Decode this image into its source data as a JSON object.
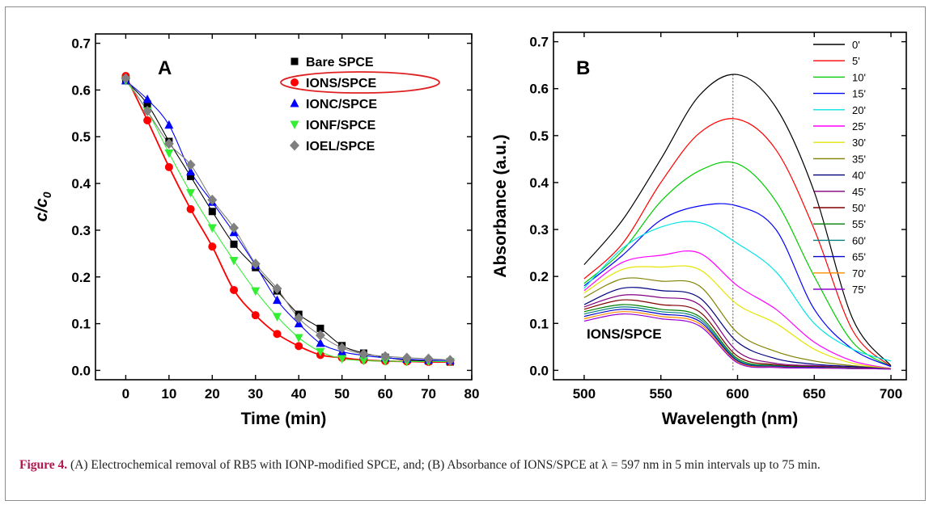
{
  "caption": {
    "label": "Figure 4.",
    "text": "(A) Electrochemical removal of RB5 with IONP-modified SPCE, and; (B) Absorbance of IONS/SPCE at λ = 597 nm in 5 min intervals up to 75 min."
  },
  "chart_data": [
    {
      "type": "scatter",
      "panel_label": "A",
      "xlabel": "Time (min)",
      "ylabel": "c/c",
      "ylabel_sub": "0",
      "xlim": [
        -7,
        80
      ],
      "ylim": [
        -0.02,
        0.72
      ],
      "xticks": [
        0,
        10,
        20,
        30,
        40,
        50,
        60,
        70,
        80
      ],
      "yticks": [
        0.0,
        0.1,
        0.2,
        0.3,
        0.4,
        0.5,
        0.6,
        0.7
      ],
      "grid": false,
      "legend_position": "top-right",
      "highlighted_series": "IONS/SPCE",
      "x": [
        0,
        5,
        10,
        15,
        20,
        25,
        30,
        35,
        40,
        45,
        50,
        55,
        60,
        65,
        70,
        75
      ],
      "series": [
        {
          "name": "Bare SPCE",
          "marker": "square",
          "color": "#000000",
          "values": [
            0.62,
            0.57,
            0.49,
            0.415,
            0.34,
            0.27,
            0.22,
            0.17,
            0.12,
            0.09,
            0.053,
            0.037,
            0.028,
            0.022,
            0.02,
            0.018
          ]
        },
        {
          "name": "IONS/SPCE",
          "marker": "circle",
          "color": "#ff0000",
          "values": [
            0.63,
            0.535,
            0.435,
            0.345,
            0.265,
            0.172,
            0.118,
            0.078,
            0.052,
            0.033,
            0.027,
            0.022,
            0.02,
            0.019,
            0.018,
            0.018
          ]
        },
        {
          "name": "IONC/SPCE",
          "marker": "triangle-up",
          "color": "#0000ff",
          "values": [
            0.62,
            0.58,
            0.525,
            0.425,
            0.36,
            0.295,
            0.225,
            0.15,
            0.1,
            0.058,
            0.04,
            0.032,
            0.027,
            0.024,
            0.022,
            0.021
          ]
        },
        {
          "name": "IONF/SPCE",
          "marker": "triangle-down",
          "color": "#33ee33",
          "values": [
            0.62,
            0.555,
            0.465,
            0.38,
            0.305,
            0.235,
            0.17,
            0.115,
            0.07,
            0.04,
            0.025,
            0.021,
            0.02,
            0.019,
            0.019,
            0.019
          ]
        },
        {
          "name": "IOEL/SPCE",
          "marker": "diamond",
          "color": "#808080",
          "values": [
            0.625,
            0.555,
            0.485,
            0.44,
            0.365,
            0.305,
            0.228,
            0.175,
            0.112,
            0.075,
            0.048,
            0.035,
            0.03,
            0.027,
            0.025,
            0.022
          ]
        }
      ]
    },
    {
      "type": "line",
      "panel_label": "B",
      "xlabel": "Wavelength (nm)",
      "ylabel": "Absorbance (a.u.)",
      "xlim": [
        480,
        710
      ],
      "ylim": [
        -0.02,
        0.72
      ],
      "xticks": [
        500,
        550,
        600,
        650,
        700
      ],
      "yticks": [
        0.0,
        0.1,
        0.2,
        0.3,
        0.4,
        0.5,
        0.6,
        0.7
      ],
      "grid": false,
      "legend_position": "top-right",
      "reference_line_x": 597,
      "annotation": "IONS/SPCE",
      "x": [
        500,
        525,
        550,
        575,
        600,
        625,
        650,
        675,
        700
      ],
      "series": [
        {
          "name": "0'",
          "color": "#000000",
          "values": [
            0.225,
            0.32,
            0.45,
            0.585,
            0.63,
            0.56,
            0.38,
            0.11,
            0.01
          ]
        },
        {
          "name": "5'",
          "color": "#ff0000",
          "values": [
            0.195,
            0.27,
            0.4,
            0.505,
            0.535,
            0.47,
            0.3,
            0.085,
            0.008
          ]
        },
        {
          "name": "10'",
          "color": "#00cc00",
          "values": [
            0.185,
            0.255,
            0.36,
            0.425,
            0.44,
            0.36,
            0.2,
            0.06,
            0.008
          ]
        },
        {
          "name": "15'",
          "color": "#0000ff",
          "values": [
            0.18,
            0.245,
            0.32,
            0.35,
            0.35,
            0.3,
            0.13,
            0.045,
            0.008
          ]
        },
        {
          "name": "20'",
          "color": "#00e5e5",
          "values": [
            0.175,
            0.26,
            0.305,
            0.315,
            0.27,
            0.21,
            0.1,
            0.045,
            0.02
          ]
        },
        {
          "name": "25'",
          "color": "#ff00ff",
          "values": [
            0.17,
            0.23,
            0.245,
            0.25,
            0.18,
            0.13,
            0.06,
            0.02,
            0.004
          ]
        },
        {
          "name": "30'",
          "color": "#e5e500",
          "values": [
            0.165,
            0.215,
            0.22,
            0.215,
            0.14,
            0.1,
            0.045,
            0.015,
            0.004
          ]
        },
        {
          "name": "35'",
          "color": "#808000",
          "values": [
            0.155,
            0.195,
            0.19,
            0.18,
            0.08,
            0.04,
            0.02,
            0.01,
            0.003
          ]
        },
        {
          "name": "40'",
          "color": "#000080",
          "values": [
            0.14,
            0.175,
            0.17,
            0.155,
            0.06,
            0.025,
            0.013,
            0.008,
            0.003
          ]
        },
        {
          "name": "45'",
          "color": "#800080",
          "values": [
            0.135,
            0.16,
            0.155,
            0.14,
            0.04,
            0.015,
            0.01,
            0.006,
            0.003
          ]
        },
        {
          "name": "50'",
          "color": "#800000",
          "values": [
            0.13,
            0.15,
            0.14,
            0.125,
            0.03,
            0.012,
            0.008,
            0.005,
            0.003
          ]
        },
        {
          "name": "55'",
          "color": "#008000",
          "values": [
            0.125,
            0.14,
            0.13,
            0.115,
            0.025,
            0.01,
            0.007,
            0.005,
            0.003
          ]
        },
        {
          "name": "60'",
          "color": "#008080",
          "values": [
            0.12,
            0.135,
            0.125,
            0.11,
            0.022,
            0.009,
            0.006,
            0.004,
            0.003
          ]
        },
        {
          "name": "65'",
          "color": "#0000cd",
          "values": [
            0.115,
            0.13,
            0.12,
            0.105,
            0.02,
            0.008,
            0.006,
            0.004,
            0.003
          ]
        },
        {
          "name": "70'",
          "color": "#ff8c00",
          "values": [
            0.11,
            0.125,
            0.115,
            0.1,
            0.018,
            0.007,
            0.005,
            0.004,
            0.003
          ]
        },
        {
          "name": "75'",
          "color": "#9400d3",
          "values": [
            0.105,
            0.12,
            0.11,
            0.095,
            0.016,
            0.006,
            0.005,
            0.004,
            0.003
          ]
        }
      ]
    }
  ]
}
